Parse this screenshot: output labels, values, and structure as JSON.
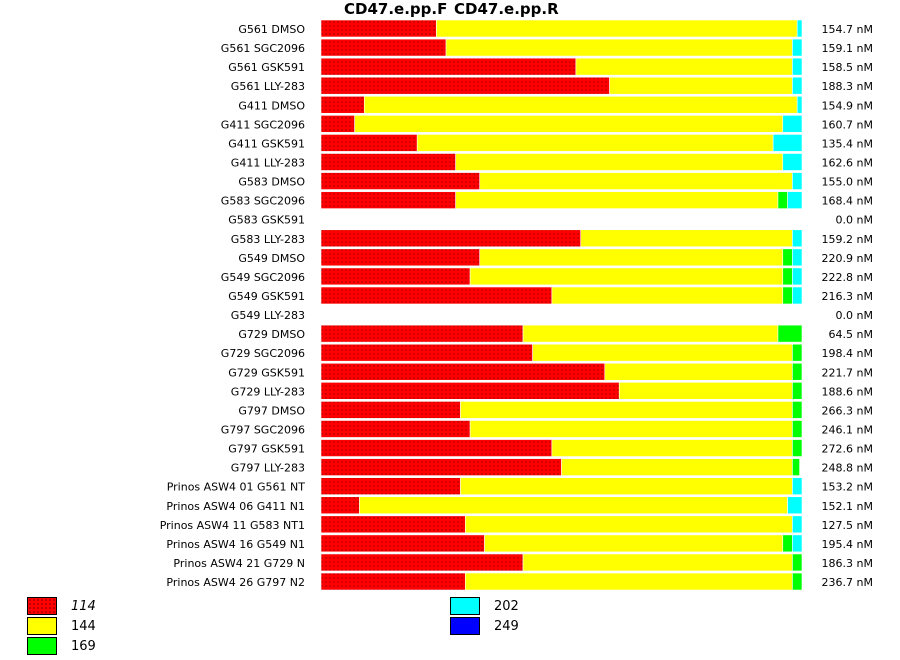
{
  "chart_data": {
    "type": "bar",
    "stacked": true,
    "orientation": "horizontal",
    "column_titles": [
      "CD47.e.pp.F",
      "CD47.e.pp.R"
    ],
    "categories": [
      "G561 DMSO",
      "G561 SGC2096",
      "G561 GSK591",
      "G561 LLY-283",
      "G411 DMSO",
      "G411 SGC2096",
      "G411 GSK591",
      "G411 LLY-283",
      "G583 DMSO",
      "G583 SGC2096",
      "G583 GSK591",
      "G583 LLY-283",
      "G549 DMSO",
      "G549 SGC2096",
      "G549 GSK591",
      "G549 LLY-283",
      "G729 DMSO",
      "G729 SGC2096",
      "G729 GSK591",
      "G729 LLY-283",
      "G797 DMSO",
      "G797 SGC2096",
      "G797 GSK591",
      "G797 LLY-283",
      "Prinos ASW4 01 G561 NT",
      "Prinos ASW4 06 G411 N1",
      "Prinos ASW4 11 G583 NT1",
      "Prinos ASW4 16 G549 N1",
      "Prinos ASW4 21 G729 N",
      "Prinos ASW4 26 G797 N2"
    ],
    "totals": [
      "154.7 nM",
      "159.1 nM",
      "158.5 nM",
      "188.3 nM",
      "154.9 nM",
      "160.7 nM",
      "135.4 nM",
      "162.6 nM",
      "155.0 nM",
      "168.4 nM",
      "0.0 nM",
      "159.2 nM",
      "220.9 nM",
      "222.8 nM",
      "216.3 nM",
      "0.0 nM",
      "64.5 nM",
      "198.4 nM",
      "221.7 nM",
      "188.6 nM",
      "266.3 nM",
      "246.1 nM",
      "272.6 nM",
      "248.8 nM",
      "153.2 nM",
      "152.1 nM",
      "127.5 nM",
      "195.4 nM",
      "186.3 nM",
      "236.7 nM"
    ],
    "series": [
      {
        "name": "114",
        "color": "#ff0000",
        "values": [
          0.24,
          0.26,
          0.53,
          0.6,
          0.09,
          0.07,
          0.2,
          0.28,
          0.33,
          0.28,
          0,
          0.54,
          0.33,
          0.31,
          0.48,
          0,
          0.42,
          0.44,
          0.59,
          0.62,
          0.29,
          0.31,
          0.48,
          0.5,
          0.29,
          0.08,
          0.3,
          0.34,
          0.42,
          0.3
        ]
      },
      {
        "name": "144",
        "color": "#ffff00",
        "values": [
          0.75,
          0.72,
          0.45,
          0.38,
          0.9,
          0.89,
          0.74,
          0.68,
          0.65,
          0.67,
          0,
          0.44,
          0.63,
          0.65,
          0.48,
          0,
          0.53,
          0.54,
          0.39,
          0.36,
          0.69,
          0.67,
          0.5,
          0.48,
          0.69,
          0.89,
          0.68,
          0.62,
          0.56,
          0.68
        ]
      },
      {
        "name": "169",
        "color": "#00ff00",
        "values": [
          0,
          0,
          0,
          0,
          0,
          0,
          0,
          0,
          0,
          0.02,
          0,
          0,
          0.02,
          0.02,
          0.02,
          0,
          0.05,
          0.02,
          0.02,
          0.02,
          0.02,
          0.02,
          0.02,
          0.015,
          0,
          0,
          0,
          0.02,
          0.02,
          0.02
        ]
      },
      {
        "name": "202",
        "color": "#00ffff",
        "values": [
          0.01,
          0.02,
          0.02,
          0.02,
          0.01,
          0.04,
          0.06,
          0.04,
          0.02,
          0.03,
          0,
          0.02,
          0.02,
          0.02,
          0.02,
          0,
          0,
          0,
          0,
          0,
          0,
          0,
          0,
          0,
          0.02,
          0.03,
          0.02,
          0.02,
          0,
          0
        ]
      },
      {
        "name": "249",
        "color": "#0000ff",
        "values": [
          0,
          0,
          0,
          0,
          0,
          0,
          0,
          0,
          0,
          0,
          0,
          0,
          0,
          0,
          0,
          0,
          0,
          0,
          0,
          0,
          0,
          0,
          0,
          0,
          0,
          0,
          0,
          0,
          0,
          0
        ]
      }
    ],
    "legend": [
      {
        "label": "114",
        "color": "#ff0000",
        "italic": true,
        "patterned": true
      },
      {
        "label": "144",
        "color": "#ffff00"
      },
      {
        "label": "169",
        "color": "#00ff00"
      },
      {
        "label": "202",
        "color": "#00ffff"
      },
      {
        "label": "249",
        "color": "#0000ff"
      }
    ],
    "legend_placement": "bottom-left"
  }
}
